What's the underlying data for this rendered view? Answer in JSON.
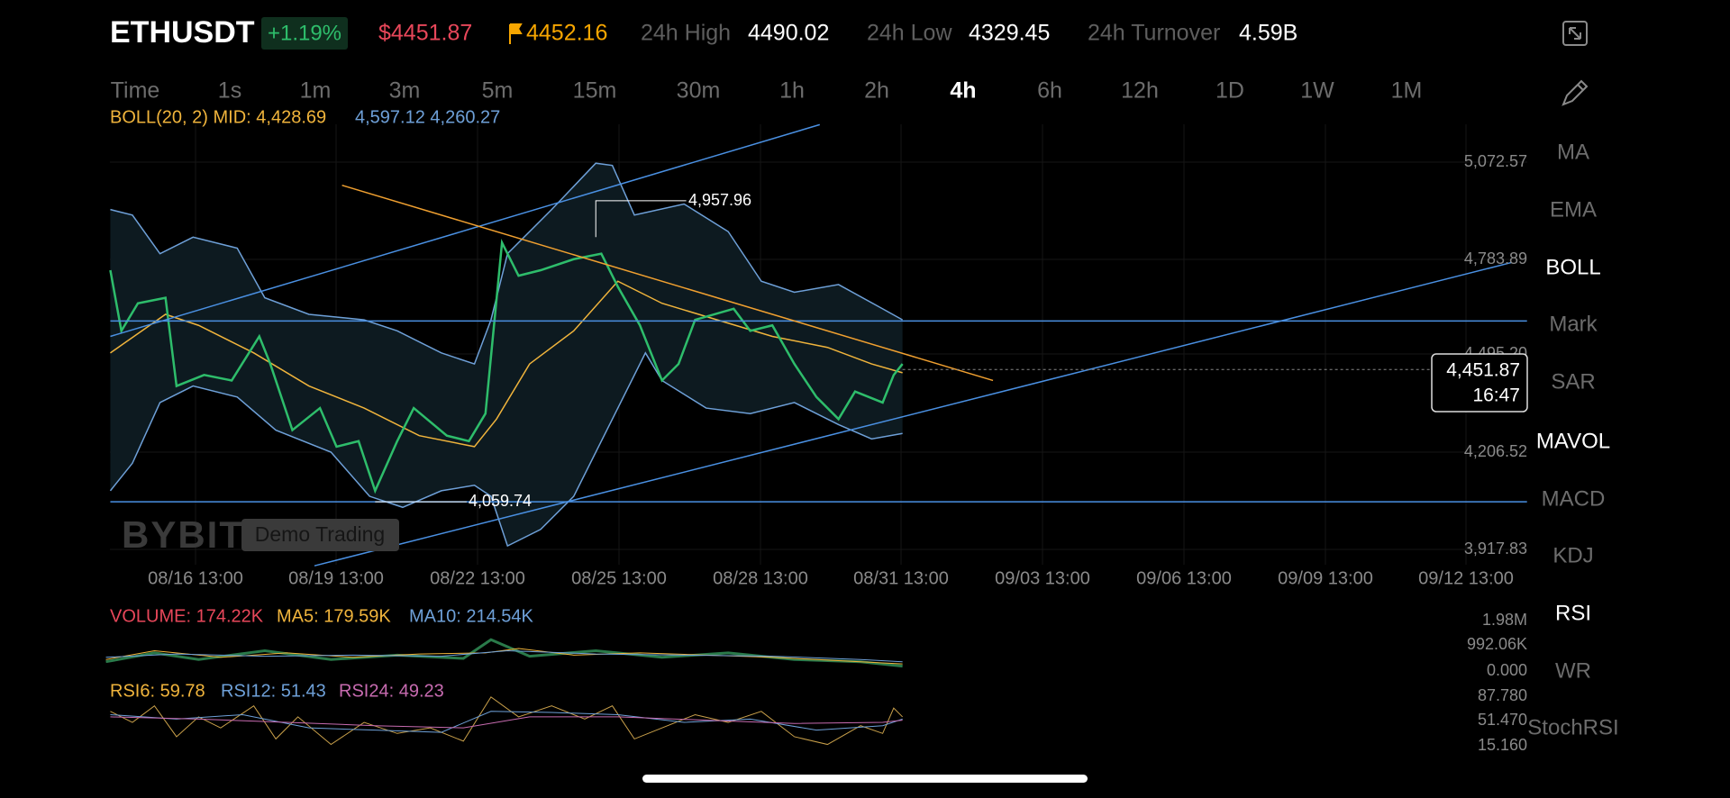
{
  "header": {
    "symbol": "ETHUSDT",
    "change": "+1.19%",
    "last_price": "$4451.87",
    "mark_price": "4452.16",
    "stats": [
      {
        "label": "24h High",
        "value": "4490.02"
      },
      {
        "label": "24h Low",
        "value": "4329.45"
      },
      {
        "label": "24h Turnover",
        "value": "4.59B"
      }
    ]
  },
  "timeframes": [
    {
      "label": "Time",
      "active": false
    },
    {
      "label": "1s",
      "active": false
    },
    {
      "label": "1m",
      "active": false
    },
    {
      "label": "3m",
      "active": false
    },
    {
      "label": "5m",
      "active": false
    },
    {
      "label": "15m",
      "active": false
    },
    {
      "label": "30m",
      "active": false
    },
    {
      "label": "1h",
      "active": false
    },
    {
      "label": "2h",
      "active": false
    },
    {
      "label": "4h",
      "active": true
    },
    {
      "label": "6h",
      "active": false
    },
    {
      "label": "12h",
      "active": false
    },
    {
      "label": "1D",
      "active": false
    },
    {
      "label": "1W",
      "active": false
    },
    {
      "label": "1M",
      "active": false
    }
  ],
  "indicator_legend": {
    "boll_mid": "BOLL(20, 2) MID: 4,428.69",
    "boll_bands": "4,597.12 4,260.27"
  },
  "indicators": [
    {
      "label": "MA",
      "active": false
    },
    {
      "label": "EMA",
      "active": false
    },
    {
      "label": "BOLL",
      "active": true
    },
    {
      "label": "Mark",
      "active": false
    },
    {
      "label": "SAR",
      "active": false
    },
    {
      "label": "MAVOL",
      "active": true
    },
    {
      "label": "MACD",
      "active": false
    },
    {
      "label": "KDJ",
      "active": false
    },
    {
      "label": "RSI",
      "active": true
    },
    {
      "label": "WR",
      "active": false
    },
    {
      "label": "StochRSI",
      "active": false
    }
  ],
  "price_axis": [
    "5,072.57",
    "4,783.89",
    "4,495.20",
    "4,206.52",
    "3,917.83"
  ],
  "time_axis": [
    "08/16 13:00",
    "08/19 13:00",
    "08/22 13:00",
    "08/25 13:00",
    "08/28 13:00",
    "08/31 13:00",
    "09/03 13:00",
    "09/06 13:00",
    "09/09 13:00",
    "09/12 13:00"
  ],
  "annotations": {
    "high": "4,957.96",
    "low": "4,059.74"
  },
  "current_price": {
    "price": "4,451.87",
    "countdown": "16:47"
  },
  "watermark": {
    "brand": "BYBIT",
    "mode": "Demo Trading"
  },
  "volume": {
    "legend": [
      "VOLUME: 174.22K",
      "MA5: 179.59K",
      "MA10: 214.54K"
    ],
    "axis": [
      "1.98M",
      "992.06K",
      "0.000"
    ]
  },
  "rsi": {
    "legend": [
      "RSI6: 59.78",
      "RSI12: 51.43",
      "RSI24: 49.23"
    ],
    "axis": [
      "87.780",
      "51.470",
      "15.160"
    ]
  }
}
